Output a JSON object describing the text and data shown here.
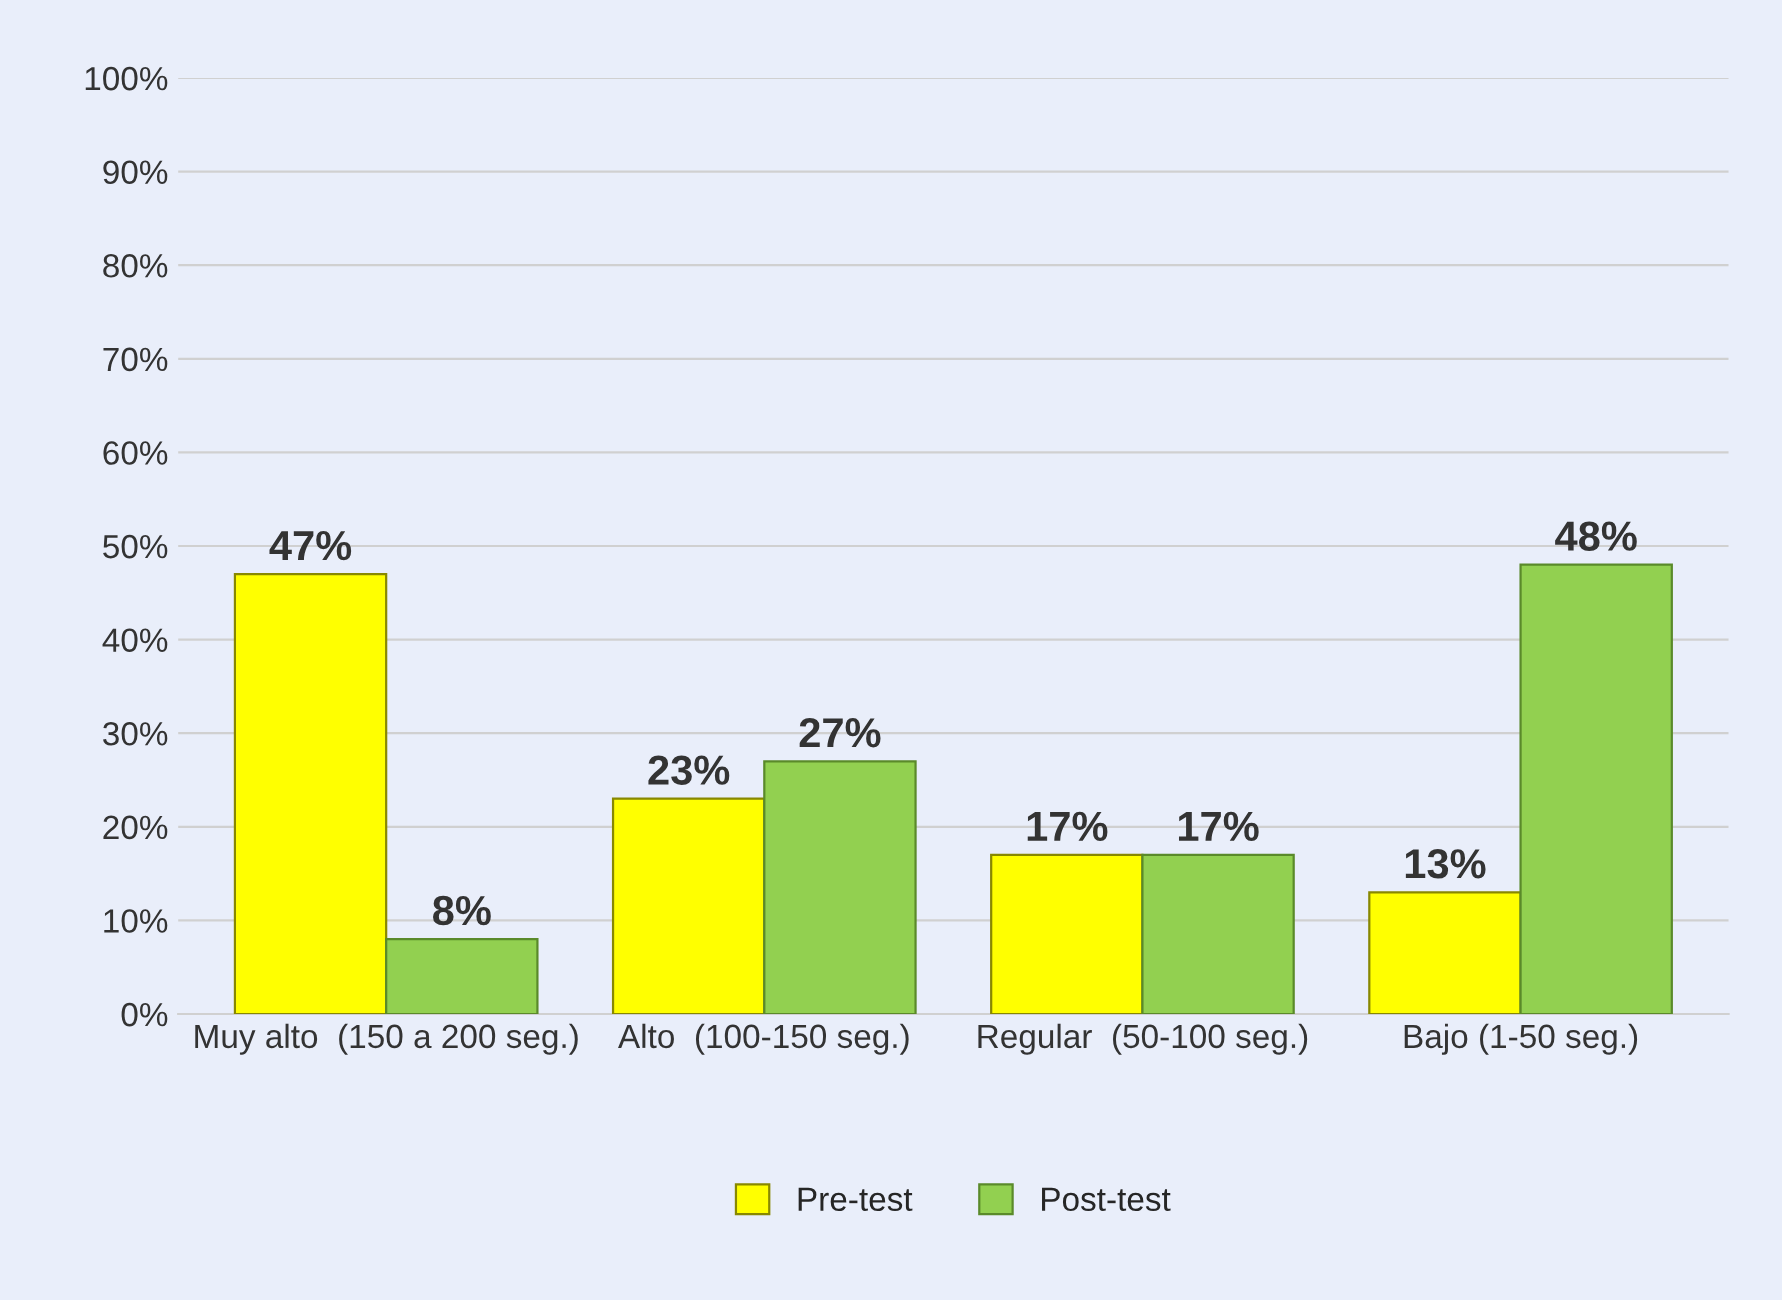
{
  "chart_data": {
    "type": "bar",
    "categories": [
      "Muy alto  (150 a 200 seg.)",
      "Alto  (100-150 seg.)",
      "Regular  (50-100 seg.)",
      "Bajo (1-50 seg.)"
    ],
    "series": [
      {
        "name": "Pre-test",
        "color": "#ffff00",
        "values": [
          47,
          23,
          17,
          13
        ],
        "value_labels": [
          "47%",
          "23%",
          "17%",
          "13%"
        ]
      },
      {
        "name": "Post-test",
        "color": "#92d050",
        "values": [
          8,
          27,
          17,
          48
        ],
        "value_labels": [
          "8%",
          "27%",
          "17%",
          "48%"
        ]
      }
    ],
    "ylim": [
      0,
      100
    ],
    "yticks": [
      {
        "value": 0,
        "label": "0%"
      },
      {
        "value": 10,
        "label": "10%"
      },
      {
        "value": 20,
        "label": "20%"
      },
      {
        "value": 30,
        "label": "30%"
      },
      {
        "value": 40,
        "label": "40%"
      },
      {
        "value": 50,
        "label": "50%"
      },
      {
        "value": 60,
        "label": "60%"
      },
      {
        "value": 70,
        "label": "70%"
      },
      {
        "value": 80,
        "label": "80%"
      },
      {
        "value": 90,
        "label": "90%"
      },
      {
        "value": 100,
        "label": "100%"
      }
    ],
    "grid": "y",
    "legend": "bottom"
  }
}
